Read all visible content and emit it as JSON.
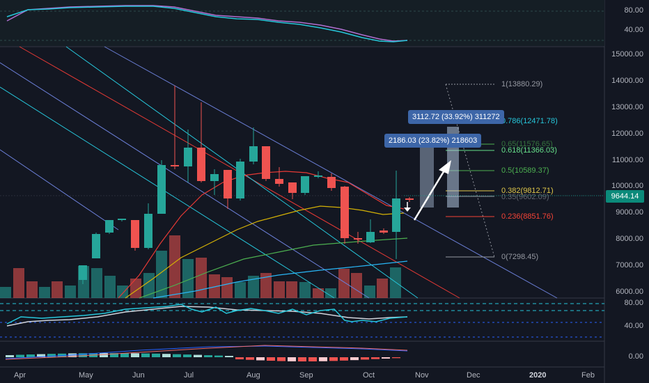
{
  "price_axis": {
    "main": [
      "15000.00",
      "14000.00",
      "13000.00",
      "12000.00",
      "11000.00",
      "10000.00",
      "9000.00",
      "8000.00",
      "7000.00",
      "6000.00"
    ],
    "top_panel": [
      "80.00",
      "40.00"
    ],
    "rsi_panel": [
      "80.00",
      "40.00"
    ],
    "macd_panel": [
      "0.00"
    ],
    "current_price": "9644.14"
  },
  "time_axis": [
    "Apr",
    "May",
    "Jun",
    "Jul",
    "Aug",
    "Sep",
    "Oct",
    "Nov",
    "Dec",
    "2020",
    "Feb"
  ],
  "fib_levels": [
    {
      "label": "1(13880.29)",
      "color": "#9598a1"
    },
    {
      "label": "0.786(12471.78)",
      "color": "#26c6da"
    },
    {
      "label": "0.65(11576.65)",
      "color": "#4caf50"
    },
    {
      "label": "0.618(11366.03)",
      "color": "#66e08a"
    },
    {
      "label": "0.5(10589.37)",
      "color": "#4caf50"
    },
    {
      "label": "0.382(9812.71)",
      "color": "#e0c84a"
    },
    {
      "label": "0.35(9602.09)",
      "color": "#9598a1"
    },
    {
      "label": "0.236(8851.76)",
      "color": "#f44336"
    },
    {
      "label": "0(7298.45)",
      "color": "#9598a1"
    }
  ],
  "callouts": {
    "upper": "3112.72 (33.92%) 311272",
    "lower": "2186.03 (23.82%) 218603"
  },
  "colors": {
    "up": "#26a69a",
    "down": "#ef5350",
    "background": "#131722",
    "callout": "#3d66a8"
  }
}
